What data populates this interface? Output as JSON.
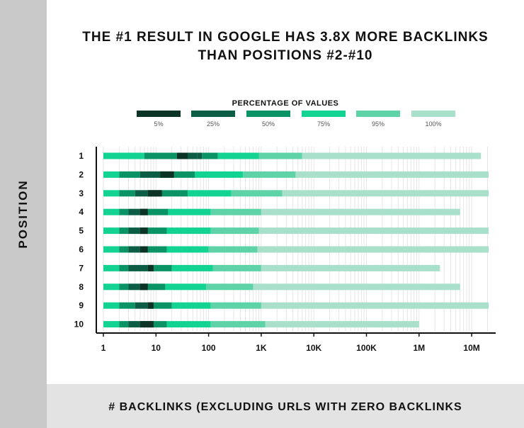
{
  "title_lines": [
    "THE #1 RESULT IN GOOGLE HAS 3.8X MORE BACKLINKS",
    "THAN POSITIONS #2-#10"
  ],
  "legend_title": "PERCENTAGE OF VALUES",
  "y_axis_title": "POSITION",
  "x_axis_title": "# BACKLINKS (EXCLUDING URLS WITH ZERO BACKLINKS",
  "colors": {
    "background_left": "#c9c9c9",
    "background_bottom": "#e3e3e3",
    "grid": "#e6e6e6",
    "axis": "#111111"
  },
  "chart_data": {
    "type": "bar",
    "orientation": "horizontal",
    "stacked": "percentile-ranges",
    "title": "THE #1 RESULT IN GOOGLE HAS 3.8X MORE BACKLINKS THAN POSITIONS #2-#10",
    "xlabel": "# BACKLINKS (EXCLUDING URLS WITH ZERO BACKLINKS",
    "ylabel": "POSITION",
    "xscale": "log",
    "xlim": [
      1,
      20000000
    ],
    "xticks": [
      1,
      10,
      100,
      1000,
      10000,
      100000,
      1000000,
      10000000
    ],
    "xtick_labels": [
      "1",
      "10",
      "100",
      "1K",
      "10K",
      "100K",
      "1M",
      "10M"
    ],
    "grid": "vertical",
    "legend_placement": "top",
    "percentiles": [
      "5%",
      "25%",
      "50%",
      "75%",
      "95%",
      "100%"
    ],
    "percentile_colors": [
      "#0b3326",
      "#0b5e45",
      "#0a9466",
      "#12d391",
      "#5fd3a8",
      "#a9e0cb"
    ],
    "positions": [
      "1",
      "2",
      "3",
      "4",
      "5",
      "6",
      "7",
      "8",
      "9",
      "10"
    ],
    "rows": [
      {
        "position": "1",
        "range_start": 1,
        "stops": [
          6,
          25,
          60,
          75,
          150,
          900,
          6000,
          15000000
        ],
        "dark_core": [
          25,
          40
        ]
      },
      {
        "position": "2",
        "range_start": 1,
        "stops": [
          2,
          5,
          12,
          22,
          55,
          450,
          4500,
          21000000
        ],
        "dark_core": [
          12,
          22
        ]
      },
      {
        "position": "3",
        "range_start": 1,
        "stops": [
          2,
          4,
          7,
          13,
          40,
          270,
          2500,
          21000000
        ],
        "dark_core": [
          7,
          13
        ]
      },
      {
        "position": "4",
        "range_start": 1,
        "stops": [
          2,
          3,
          5,
          7,
          17,
          110,
          1000,
          6000000
        ],
        "dark_core": [
          5,
          7
        ]
      },
      {
        "position": "5",
        "range_start": 1,
        "stops": [
          2,
          3,
          5,
          7,
          16,
          110,
          900,
          21000000
        ],
        "dark_core": [
          5,
          7
        ]
      },
      {
        "position": "6",
        "range_start": 1,
        "stops": [
          2,
          3,
          5,
          7,
          16,
          100,
          850,
          21000000
        ],
        "dark_core": [
          5,
          7
        ]
      },
      {
        "position": "7",
        "range_start": 1,
        "stops": [
          2,
          3,
          7,
          9,
          20,
          120,
          1000,
          2500000
        ],
        "dark_core": [
          7,
          9
        ]
      },
      {
        "position": "8",
        "range_start": 1,
        "stops": [
          2,
          3,
          5,
          7,
          15,
          90,
          700,
          6000000
        ],
        "dark_core": [
          5,
          7
        ]
      },
      {
        "position": "9",
        "range_start": 1,
        "stops": [
          2,
          4,
          7,
          9,
          20,
          110,
          1000,
          21000000
        ],
        "dark_core": [
          7,
          9
        ]
      },
      {
        "position": "10",
        "range_start": 1,
        "stops": [
          2,
          3,
          5,
          9,
          16,
          110,
          1200,
          1000000
        ],
        "dark_core": [
          5,
          9
        ]
      }
    ]
  }
}
